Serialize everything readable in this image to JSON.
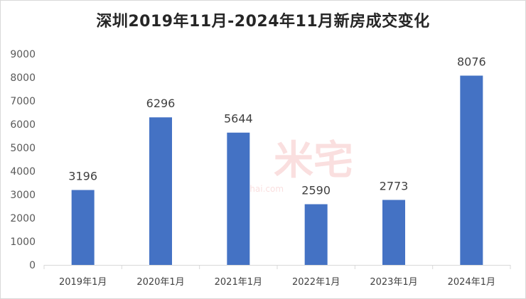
{
  "chart_data": {
    "type": "bar",
    "title": "深圳2019年11月-2024年11月新房成交变化",
    "categories": [
      "2019年1月",
      "2020年1月",
      "2021年1月",
      "2022年1月",
      "2023年1月",
      "2024年1月"
    ],
    "values": [
      3196,
      6296,
      5644,
      2590,
      2773,
      8076
    ],
    "ylim": [
      0,
      9000
    ],
    "yticks": [
      0,
      1000,
      2000,
      3000,
      4000,
      5000,
      6000,
      7000,
      8000,
      9000
    ],
    "grid": false,
    "legend": "none",
    "bar_color": "#4472c4",
    "data_labels": true
  },
  "watermark": {
    "text": "米宅",
    "site": "mizhai.com"
  }
}
